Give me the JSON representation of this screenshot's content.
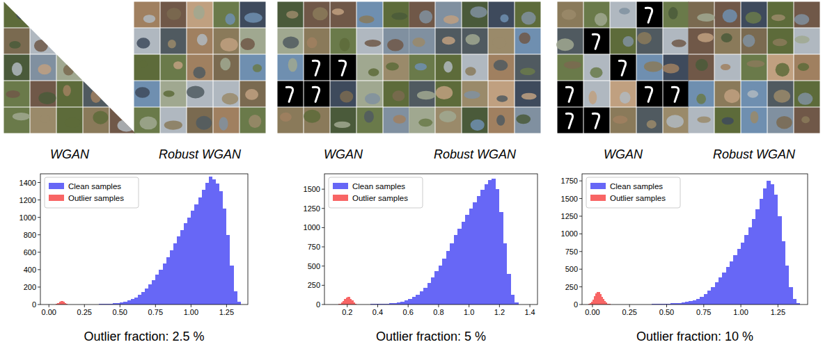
{
  "chart_data": [
    {
      "type": "histogram",
      "xlabel": "Outlier fraction: 2.5 %",
      "annotations": [
        "WGAN",
        "Robust WGAN"
      ],
      "legend": "upper left",
      "grid": false,
      "xlim": [
        -0.06,
        1.4
      ],
      "ylim": [
        0,
        1500
      ],
      "xticks": [
        {
          "value": 0,
          "label": "0.00"
        },
        {
          "value": 0.25,
          "label": "0.25"
        },
        {
          "value": 0.5,
          "label": "0.50"
        },
        {
          "value": 0.75,
          "label": "0.75"
        },
        {
          "value": 1,
          "label": "1.00"
        },
        {
          "value": 1.25,
          "label": "1.25"
        }
      ],
      "yticks": [
        0,
        200,
        400,
        600,
        800,
        1000,
        1200,
        1400
      ],
      "series": [
        {
          "name": "Clean samples",
          "color": "#6767f6",
          "bins": [
            0.3,
            0.325,
            0.35,
            0.375,
            0.4,
            0.425,
            0.45,
            0.475,
            0.5,
            0.525,
            0.55,
            0.575,
            0.6,
            0.625,
            0.65,
            0.675,
            0.7,
            0.725,
            0.75,
            0.775,
            0.8,
            0.825,
            0.85,
            0.875,
            0.9,
            0.925,
            0.95,
            0.975,
            1.0,
            1.025,
            1.05,
            1.075,
            1.1,
            1.125,
            1.15,
            1.175,
            1.2,
            1.225,
            1.25,
            1.275,
            1.3,
            1.325,
            1.35
          ],
          "values": [
            2,
            3,
            4,
            5,
            7,
            9,
            12,
            16,
            22,
            30,
            45,
            60,
            80,
            110,
            140,
            180,
            230,
            280,
            340,
            400,
            470,
            540,
            620,
            700,
            780,
            850,
            930,
            1000,
            1080,
            1150,
            1230,
            1320,
            1400,
            1470,
            1440,
            1390,
            1300,
            1100,
            800,
            450,
            150,
            30
          ]
        },
        {
          "name": "Outlier samples",
          "color": "#f86565",
          "bins": [
            0.05,
            0.06,
            0.07,
            0.08,
            0.09,
            0.1,
            0.11,
            0.12,
            0.13,
            0.14
          ],
          "values": [
            8,
            18,
            30,
            40,
            38,
            30,
            18,
            8,
            3
          ]
        }
      ]
    },
    {
      "type": "histogram",
      "xlabel": "Outlier fraction: 5 %",
      "annotations": [
        "WGAN",
        "Robust WGAN"
      ],
      "legend": "upper left",
      "grid": false,
      "xlim": [
        0.05,
        1.45
      ],
      "ylim": [
        0,
        1700
      ],
      "xticks": [
        0.2,
        0.4,
        0.6,
        0.8,
        {
          "value": 1,
          "label": "1.0"
        },
        1.2,
        1.4
      ],
      "yticks": [
        0,
        250,
        500,
        750,
        1000,
        1250,
        1500
      ],
      "series": [
        {
          "name": "Clean samples",
          "color": "#6767f6",
          "bins": [
            0.275,
            0.3,
            0.325,
            0.35,
            0.375,
            0.4,
            0.425,
            0.45,
            0.475,
            0.5,
            0.525,
            0.55,
            0.575,
            0.6,
            0.625,
            0.65,
            0.675,
            0.7,
            0.725,
            0.75,
            0.775,
            0.8,
            0.825,
            0.85,
            0.875,
            0.9,
            0.925,
            0.95,
            0.975,
            1.0,
            1.025,
            1.05,
            1.075,
            1.1,
            1.125,
            1.15,
            1.175,
            1.2,
            1.225,
            1.25,
            1.275,
            1.3,
            1.325
          ],
          "values": [
            2,
            3,
            4,
            5,
            6,
            8,
            10,
            13,
            17,
            22,
            30,
            40,
            55,
            75,
            100,
            130,
            170,
            220,
            280,
            350,
            430,
            510,
            600,
            700,
            800,
            900,
            990,
            1080,
            1170,
            1250,
            1330,
            1410,
            1490,
            1560,
            1620,
            1640,
            1500,
            1200,
            800,
            400,
            130,
            25
          ]
        },
        {
          "name": "Outlier samples",
          "color": "#f86565",
          "bins": [
            0.14,
            0.15,
            0.16,
            0.17,
            0.18,
            0.19,
            0.2,
            0.21,
            0.22,
            0.23,
            0.24,
            0.25,
            0.26,
            0.27
          ],
          "values": [
            5,
            12,
            25,
            45,
            70,
            90,
            100,
            95,
            75,
            50,
            28,
            12,
            4
          ]
        }
      ]
    },
    {
      "type": "histogram",
      "xlabel": "Outlier fraction: 10 %",
      "annotations": [
        "WGAN",
        "Robust WGAN"
      ],
      "legend": "upper left",
      "grid": false,
      "xlim": [
        -0.07,
        1.45
      ],
      "ylim": [
        0,
        1850
      ],
      "xticks": [
        {
          "value": 0,
          "label": "0.00"
        },
        {
          "value": 0.25,
          "label": "0.25"
        },
        {
          "value": 0.5,
          "label": "0.50"
        },
        {
          "value": 0.75,
          "label": "0.75"
        },
        {
          "value": 1,
          "label": "1.00"
        },
        {
          "value": 1.25,
          "label": "1.25"
        }
      ],
      "yticks": [
        0,
        250,
        500,
        750,
        1000,
        1250,
        1500,
        1750
      ],
      "series": [
        {
          "name": "Clean samples",
          "color": "#6767f6",
          "bins": [
            0.3,
            0.325,
            0.35,
            0.375,
            0.4,
            0.425,
            0.45,
            0.475,
            0.5,
            0.525,
            0.55,
            0.575,
            0.6,
            0.625,
            0.65,
            0.675,
            0.7,
            0.725,
            0.75,
            0.775,
            0.8,
            0.825,
            0.85,
            0.875,
            0.9,
            0.925,
            0.95,
            0.975,
            1.0,
            1.025,
            1.05,
            1.075,
            1.1,
            1.125,
            1.15,
            1.175,
            1.2,
            1.225,
            1.25,
            1.275,
            1.3,
            1.325,
            1.35,
            1.375,
            1.4
          ],
          "values": [
            1,
            2,
            3,
            4,
            5,
            6,
            8,
            10,
            12,
            15,
            18,
            22,
            28,
            35,
            45,
            60,
            80,
            110,
            150,
            200,
            250,
            310,
            380,
            450,
            530,
            610,
            700,
            790,
            880,
            980,
            1090,
            1210,
            1350,
            1500,
            1640,
            1750,
            1700,
            1550,
            1250,
            900,
            550,
            250,
            80,
            15
          ]
        },
        {
          "name": "Outlier samples",
          "color": "#f86565",
          "bins": [
            -0.03,
            -0.02,
            -0.01,
            0.0,
            0.01,
            0.02,
            0.03,
            0.04,
            0.05,
            0.06,
            0.07,
            0.08,
            0.09,
            0.1,
            0.11,
            0.12,
            0.13,
            0.14,
            0.15
          ],
          "values": [
            5,
            15,
            35,
            70,
            120,
            160,
            180,
            175,
            150,
            110,
            75,
            45,
            25,
            12,
            6,
            3,
            2,
            1
          ]
        }
      ]
    }
  ]
}
